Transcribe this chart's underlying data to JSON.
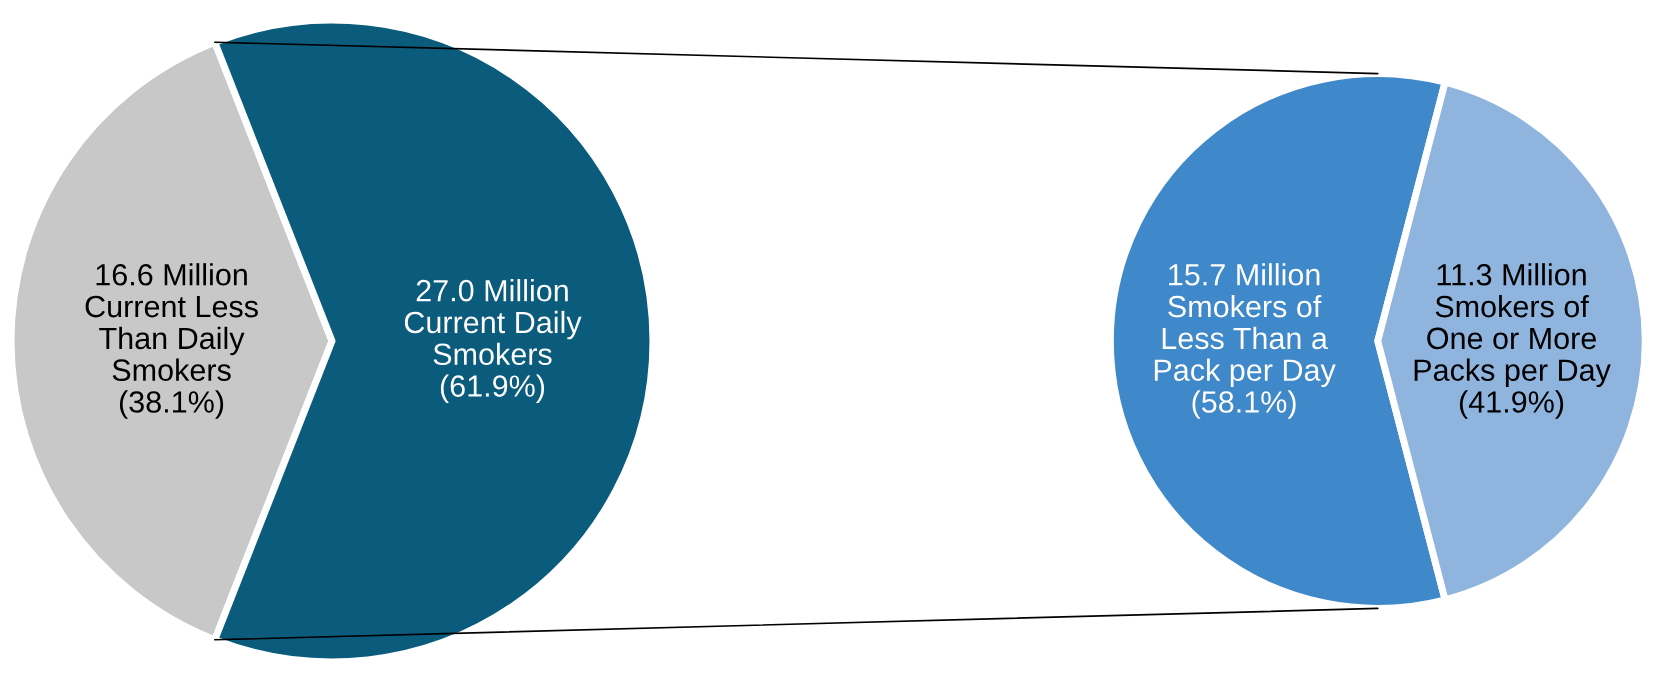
{
  "chart_data": [
    {
      "type": "pie",
      "categories": [
        "16.6 Million\nCurrent Less\nThan Daily\nSmokers\n(38.1%)",
        "27.0 Million\nCurrent Daily\nSmokers\n(61.9%)"
      ],
      "values": [
        38.1,
        61.9
      ],
      "colors": [
        "#c8c8c9",
        "#0b5c7c"
      ]
    },
    {
      "type": "pie",
      "categories": [
        "15.7 Million\nSmokers of\nLess Than a\nPack per Day\n(58.1%)",
        "11.3 Million\nSmokers of\nOne or More\nPacks per Day\n(41.9%)"
      ],
      "values": [
        58.1,
        41.9
      ],
      "colors": [
        "#3f88c9",
        "#8fb4de"
      ]
    }
  ]
}
